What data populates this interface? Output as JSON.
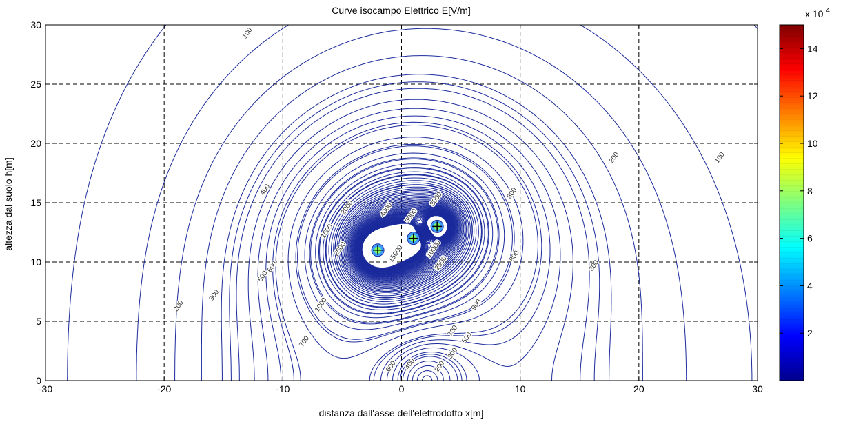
{
  "chart_data": {
    "type": "contour",
    "title": "Curve isocampo Elettrico E[V/m]",
    "xlabel": "distanza dall'asse dell'elettrodotto x[m]",
    "ylabel": "altezza dal suolo h[m]",
    "xlim": [
      -30,
      30
    ],
    "ylim": [
      0,
      30
    ],
    "x_ticks": [
      -30,
      -20,
      -10,
      0,
      10,
      20,
      30
    ],
    "y_ticks": [
      0,
      5,
      10,
      15,
      20,
      25,
      30
    ],
    "x_tick_labels": [
      "-30",
      "-20",
      "-10",
      "0",
      "10",
      "20",
      "30"
    ],
    "y_tick_labels": [
      "0",
      "5",
      "10",
      "15",
      "20",
      "25",
      "30"
    ],
    "grid": true,
    "line_color": "#1a2a9c",
    "conductors": [
      {
        "x": -2,
        "y": 11
      },
      {
        "x": 1,
        "y": 12
      },
      {
        "x": 3,
        "y": 13
      }
    ],
    "levels": [
      100,
      200,
      300,
      400,
      500,
      600,
      700,
      800,
      900,
      1000,
      1500,
      2000,
      2500,
      3000,
      4000,
      5000,
      10000,
      15000
    ],
    "contour_labels": [
      {
        "text": "100",
        "x": -13,
        "y": 29.3
      },
      {
        "text": "100",
        "x": 26.8,
        "y": 18.8
      },
      {
        "text": "200",
        "x": 17.9,
        "y": 18.8
      },
      {
        "text": "200",
        "x": -18.8,
        "y": 6.3
      },
      {
        "text": "200",
        "x": 3.2,
        "y": 1.2
      },
      {
        "text": "300",
        "x": -15.8,
        "y": 7.2
      },
      {
        "text": "300",
        "x": 16.2,
        "y": 9.7
      },
      {
        "text": "300",
        "x": 4.3,
        "y": 2.3
      },
      {
        "text": "400",
        "x": -11.5,
        "y": 16.1
      },
      {
        "text": "400",
        "x": 0.7,
        "y": 1.4
      },
      {
        "text": "500",
        "x": -11.7,
        "y": 8.8
      },
      {
        "text": "500",
        "x": 5.5,
        "y": 3.6
      },
      {
        "text": "600",
        "x": -10.9,
        "y": 9.6
      },
      {
        "text": "600",
        "x": -0.9,
        "y": 1.2
      },
      {
        "text": "700",
        "x": -8.2,
        "y": 3.3
      },
      {
        "text": "700",
        "x": 4.3,
        "y": 4.2
      },
      {
        "text": "800",
        "x": 9.3,
        "y": 15.8
      },
      {
        "text": "800",
        "x": 9.5,
        "y": 10.5
      },
      {
        "text": "900",
        "x": 6.3,
        "y": 6.4
      },
      {
        "text": "1000",
        "x": -6.8,
        "y": 6.4
      },
      {
        "text": "1500",
        "x": -6.3,
        "y": 12.6
      },
      {
        "text": "2000",
        "x": -4.6,
        "y": 14.6
      },
      {
        "text": "2500",
        "x": -5.2,
        "y": 11.1
      },
      {
        "text": "3000",
        "x": 2.9,
        "y": 15.3
      },
      {
        "text": "4000",
        "x": -1.3,
        "y": 14.4
      },
      {
        "text": "5000",
        "x": 0.8,
        "y": 13.9
      },
      {
        "text": "10000",
        "x": 2.7,
        "y": 11.1
      },
      {
        "text": "15000",
        "x": -0.5,
        "y": 10.7
      },
      {
        "text": "2500",
        "x": 3.3,
        "y": 9.9
      }
    ],
    "colorbar": {
      "multiplier_label": "x 10",
      "multiplier_exponent": "4",
      "range": [
        0.0,
        15.0
      ],
      "ticks": [
        2,
        4,
        6,
        8,
        10,
        12,
        14
      ],
      "tick_labels": [
        "2",
        "4",
        "6",
        "8",
        "10",
        "12",
        "14"
      ],
      "colormap": "jet"
    }
  }
}
